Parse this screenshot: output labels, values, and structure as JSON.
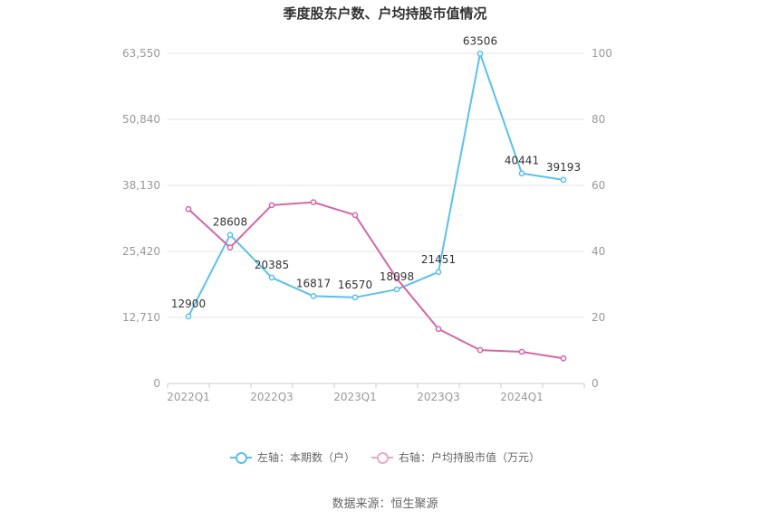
{
  "chart_data": {
    "type": "line",
    "title": "季度股东户数、户均持股市值情况",
    "source": "数据来源：恒生聚源",
    "categories": [
      "2022Q1",
      "2022Q2",
      "2022Q3",
      "2022Q4",
      "2023Q1",
      "2023Q2",
      "2023Q3",
      "2023Q4",
      "2024Q1",
      "2024Q2"
    ],
    "x_tick_labels": [
      "2022Q1",
      "",
      "2022Q3",
      "",
      "2023Q1",
      "",
      "2023Q3",
      "",
      "2024Q1",
      ""
    ],
    "y_left": {
      "ticks": [
        "0",
        "12,710",
        "25,420",
        "38,130",
        "50,840",
        "63,550"
      ],
      "ylim": [
        0,
        63550
      ]
    },
    "y_right": {
      "ticks": [
        "0",
        "20",
        "40",
        "60",
        "80",
        "100"
      ],
      "ylim": [
        0,
        100
      ]
    },
    "grid": true,
    "legend_position": "bottom",
    "series": [
      {
        "name": "左轴：本期数（户）",
        "axis": "left",
        "color": "#5bc0ee",
        "values": [
          12900,
          28608,
          20385,
          16817,
          16570,
          18098,
          21451,
          63506,
          40441,
          39193
        ],
        "labels": [
          "12900",
          "28608",
          "20385",
          "16817",
          "16570",
          "18098",
          "21451",
          "63506",
          "40441",
          "39193"
        ]
      },
      {
        "name": "右轴：户均持股市值（万元）",
        "axis": "right",
        "color": "#d367a9",
        "values": [
          52.8,
          41.2,
          54.0,
          54.9,
          51.0,
          31.8,
          16.5,
          10.1,
          9.6,
          7.6
        ]
      }
    ]
  }
}
